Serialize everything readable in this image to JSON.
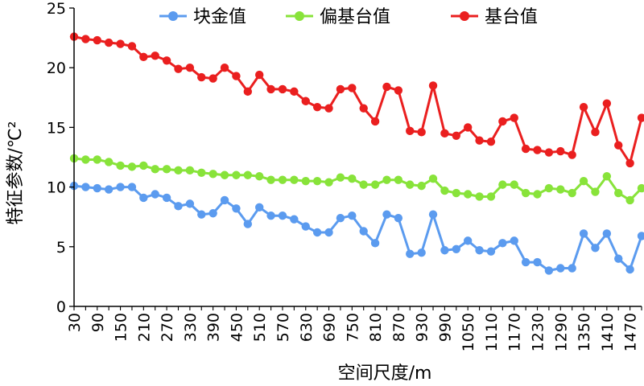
{
  "chart_data": {
    "type": "line",
    "xlabel": "空间尺度/m",
    "ylabel": "特征参数/℃²",
    "ylim": [
      0,
      25
    ],
    "yticks": [
      "0",
      "5",
      "10",
      "15",
      "20",
      "25"
    ],
    "x": [
      30,
      60,
      90,
      120,
      150,
      180,
      210,
      240,
      270,
      300,
      330,
      360,
      390,
      420,
      450,
      480,
      510,
      540,
      570,
      600,
      630,
      660,
      690,
      720,
      750,
      780,
      810,
      840,
      870,
      900,
      930,
      960,
      990,
      1020,
      1050,
      1080,
      1110,
      1140,
      1170,
      1200,
      1230,
      1260,
      1290,
      1320,
      1350,
      1380,
      1410,
      1440,
      1470,
      1500
    ],
    "xtick_labels": [
      "30",
      "90",
      "150",
      "210",
      "270",
      "330",
      "390",
      "450",
      "510",
      "570",
      "630",
      "690",
      "750",
      "810",
      "870",
      "930",
      "990",
      "1050",
      "1110",
      "1170",
      "1230",
      "1290",
      "1350",
      "1410",
      "1470"
    ],
    "legend_position": "top",
    "grid": false,
    "series": [
      {
        "name": "块金值",
        "color": "#5b9bef",
        "values": [
          10.1,
          10.0,
          9.9,
          9.8,
          10.0,
          10.0,
          9.1,
          9.4,
          9.1,
          8.4,
          8.6,
          7.7,
          7.8,
          8.9,
          8.2,
          6.9,
          8.3,
          7.6,
          7.6,
          7.3,
          6.7,
          6.2,
          6.2,
          7.4,
          7.6,
          6.3,
          5.3,
          7.7,
          7.4,
          4.4,
          4.5,
          7.7,
          4.7,
          4.8,
          5.5,
          4.7,
          4.6,
          5.3,
          5.5,
          3.7,
          3.7,
          3.0,
          3.2,
          3.2,
          6.1,
          4.9,
          6.1,
          4.0,
          3.1,
          5.9
        ]
      },
      {
        "name": "偏基台值",
        "color": "#88e33a",
        "values": [
          12.4,
          12.3,
          12.3,
          12.1,
          11.8,
          11.7,
          11.8,
          11.5,
          11.5,
          11.4,
          11.4,
          11.2,
          11.1,
          11.0,
          11.0,
          11.0,
          10.9,
          10.6,
          10.6,
          10.6,
          10.5,
          10.5,
          10.4,
          10.8,
          10.7,
          10.2,
          10.2,
          10.6,
          10.6,
          10.2,
          10.1,
          10.7,
          9.7,
          9.5,
          9.4,
          9.2,
          9.2,
          10.2,
          10.2,
          9.5,
          9.4,
          9.9,
          9.8,
          9.5,
          10.5,
          9.6,
          10.9,
          9.5,
          8.9,
          9.9
        ]
      },
      {
        "name": "基台值",
        "color": "#ea1f1f",
        "values": [
          22.6,
          22.4,
          22.3,
          22.1,
          22.0,
          21.8,
          20.9,
          21.0,
          20.6,
          19.9,
          20.0,
          19.2,
          19.1,
          20.0,
          19.3,
          18.0,
          19.4,
          18.2,
          18.2,
          18.0,
          17.2,
          16.7,
          16.6,
          18.2,
          18.3,
          16.6,
          15.5,
          18.4,
          18.1,
          14.7,
          14.6,
          18.5,
          14.5,
          14.3,
          15.0,
          13.9,
          13.8,
          15.5,
          15.8,
          13.2,
          13.1,
          12.9,
          13.0,
          12.7,
          16.7,
          14.6,
          17.0,
          13.5,
          12.0,
          15.8
        ]
      }
    ]
  }
}
